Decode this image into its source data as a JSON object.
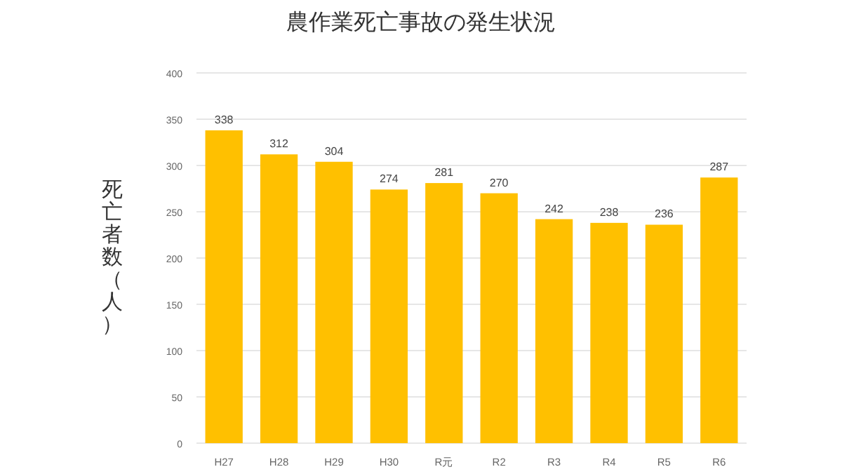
{
  "chart_data": {
    "type": "bar",
    "title": "農作業死亡事故の発生状況",
    "ylabel": "死亡者数（人）",
    "categories": [
      "H27",
      "H28",
      "H29",
      "H30",
      "R元",
      "R2",
      "R3",
      "R4",
      "R5",
      "R6"
    ],
    "values": [
      338,
      312,
      304,
      274,
      281,
      270,
      242,
      238,
      236,
      287
    ],
    "color": "#ffc000",
    "ylim": [
      0,
      400
    ],
    "yticks": [
      0,
      50,
      100,
      150,
      200,
      250,
      300,
      350,
      400
    ],
    "grid": "y",
    "data_labels": true
  }
}
